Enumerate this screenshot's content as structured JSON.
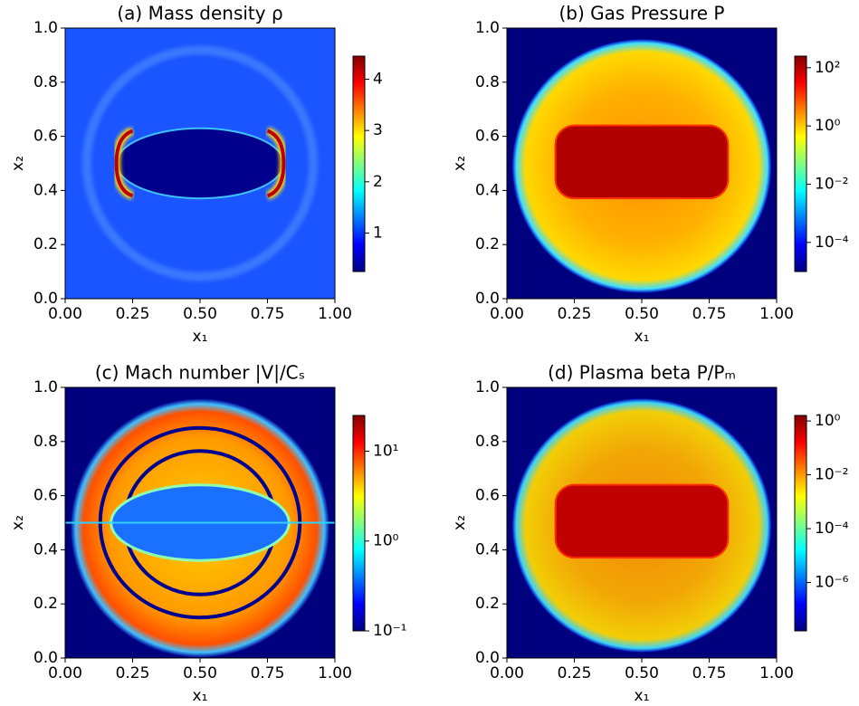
{
  "chart_data": [
    {
      "type": "heatmap",
      "title": "(a) Mass density ρ",
      "xlabel": "x₁",
      "ylabel": "x₂",
      "xlim": [
        0,
        1
      ],
      "ylim": [
        0,
        1
      ],
      "xticks": [
        {
          "value": 0,
          "label": "0.00"
        },
        {
          "value": 0.25,
          "label": "0.25"
        },
        {
          "value": 0.5,
          "label": "0.50"
        },
        {
          "value": 0.75,
          "label": "0.75"
        },
        {
          "value": 1,
          "label": "1.00"
        }
      ],
      "yticks": [
        {
          "value": 0,
          "label": "0.0"
        },
        {
          "value": 0.2,
          "label": "0.2"
        },
        {
          "value": 0.4,
          "label": "0.4"
        },
        {
          "value": 0.6,
          "label": "0.6"
        },
        {
          "value": 0.8,
          "label": "0.8"
        },
        {
          "value": 1,
          "label": "1.0"
        }
      ],
      "clim": [
        0.25,
        4.45
      ],
      "clog": false,
      "cticks": [
        1,
        2,
        3,
        4
      ]
    },
    {
      "type": "heatmap",
      "title": "(b) Gas Pressure P",
      "xlabel": "x₁",
      "ylabel": "x₂",
      "xlim": [
        0,
        1
      ],
      "ylim": [
        0,
        1
      ],
      "xticks": [
        {
          "value": 0,
          "label": "0.00"
        },
        {
          "value": 0.25,
          "label": "0.25"
        },
        {
          "value": 0.5,
          "label": "0.50"
        },
        {
          "value": 0.75,
          "label": "0.75"
        },
        {
          "value": 1,
          "label": "1.00"
        }
      ],
      "yticks": [
        {
          "value": 0,
          "label": "0.0"
        },
        {
          "value": 0.2,
          "label": "0.2"
        },
        {
          "value": 0.4,
          "label": "0.4"
        },
        {
          "value": 0.6,
          "label": "0.6"
        },
        {
          "value": 0.8,
          "label": "0.8"
        },
        {
          "value": 1,
          "label": "1.0"
        }
      ],
      "clim": [
        1e-05,
        250
      ],
      "clog": true,
      "cticks": [
        {
          "value": 0.0001,
          "label": "10⁻⁴"
        },
        {
          "value": 0.01,
          "label": "10⁻²"
        },
        {
          "value": 1,
          "label": "10⁰"
        },
        {
          "value": 100,
          "label": "10²"
        }
      ]
    },
    {
      "type": "heatmap",
      "title": "(c) Mach number |V|/Cₛ",
      "xlabel": "x₁",
      "ylabel": "x₂",
      "xlim": [
        0,
        1
      ],
      "ylim": [
        0,
        1
      ],
      "xticks": [
        {
          "value": 0,
          "label": "0.00"
        },
        {
          "value": 0.25,
          "label": "0.25"
        },
        {
          "value": 0.5,
          "label": "0.50"
        },
        {
          "value": 0.75,
          "label": "0.75"
        },
        {
          "value": 1,
          "label": "1.00"
        }
      ],
      "yticks": [
        {
          "value": 0,
          "label": "0.0"
        },
        {
          "value": 0.2,
          "label": "0.2"
        },
        {
          "value": 0.4,
          "label": "0.4"
        },
        {
          "value": 0.6,
          "label": "0.6"
        },
        {
          "value": 0.8,
          "label": "0.8"
        },
        {
          "value": 1,
          "label": "1.0"
        }
      ],
      "clim": [
        0.1,
        25
      ],
      "clog": true,
      "cticks": [
        {
          "value": 0.1,
          "label": "10⁻¹"
        },
        {
          "value": 1,
          "label": "10⁰"
        },
        {
          "value": 10,
          "label": "10¹"
        }
      ]
    },
    {
      "type": "heatmap",
      "title": "(d) Plasma beta P/Pₘ",
      "xlabel": "x₁",
      "ylabel": "x₂",
      "xlim": [
        0,
        1
      ],
      "ylim": [
        0,
        1
      ],
      "xticks": [
        {
          "value": 0,
          "label": "0.00"
        },
        {
          "value": 0.25,
          "label": "0.25"
        },
        {
          "value": 0.5,
          "label": "0.50"
        },
        {
          "value": 0.75,
          "label": "0.75"
        },
        {
          "value": 1,
          "label": "1.00"
        }
      ],
      "yticks": [
        {
          "value": 0,
          "label": "0.0"
        },
        {
          "value": 0.2,
          "label": "0.2"
        },
        {
          "value": 0.4,
          "label": "0.4"
        },
        {
          "value": 0.6,
          "label": "0.6"
        },
        {
          "value": 0.8,
          "label": "0.8"
        },
        {
          "value": 1,
          "label": "1.0"
        }
      ],
      "clim": [
        1.6e-08,
        1.6
      ],
      "clog": true,
      "cticks": [
        {
          "value": 1e-06,
          "label": "10⁻⁶"
        },
        {
          "value": 0.0001,
          "label": "10⁻⁴"
        },
        {
          "value": 0.01,
          "label": "10⁻²"
        },
        {
          "value": 1,
          "label": "10⁰"
        }
      ]
    }
  ]
}
